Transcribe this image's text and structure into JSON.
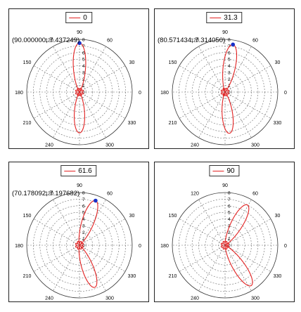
{
  "panels": [
    {
      "legend": "0",
      "cursor_label": "(90.000000, 7.437249)",
      "chart_data": {
        "type": "polar-line",
        "angle_ticks": [
          "0",
          "30",
          "60",
          "90",
          "120",
          "150",
          "180",
          "210",
          "240",
          "270",
          "300",
          "330"
        ],
        "r_ticks": [
          "0",
          "1",
          "2",
          "3",
          "4",
          "5",
          "6",
          "7",
          "8"
        ],
        "rlim": [
          0,
          8
        ],
        "series": [
          {
            "name": "0",
            "color": "#e32222",
            "peak_angle_deg": 90,
            "peak_r": 7.437249,
            "lobes": [
              {
                "angle": 90,
                "r": 7.44
              },
              {
                "angle": 270,
                "r": 6.2
              }
            ]
          }
        ],
        "marker": {
          "angle": 90,
          "r": 7.437249
        }
      }
    },
    {
      "legend": "31.3",
      "cursor_label": "(80.571434, 7.314050)",
      "chart_data": {
        "type": "polar-line",
        "angle_ticks": [
          "0",
          "30",
          "60",
          "90",
          "120",
          "150",
          "180",
          "210",
          "240",
          "270",
          "300",
          "330"
        ],
        "r_ticks": [
          "0",
          "1",
          "2",
          "3",
          "4",
          "5",
          "6",
          "7",
          "8"
        ],
        "rlim": [
          0,
          8
        ],
        "series": [
          {
            "name": "31.3",
            "color": "#e32222",
            "peak_angle_deg": 80.571434,
            "peak_r": 7.31405,
            "lobes": [
              {
                "angle": 80.6,
                "r": 7.31
              },
              {
                "angle": 276,
                "r": 6.3
              }
            ]
          }
        ],
        "marker": {
          "angle": 80.571434,
          "r": 7.31405
        }
      }
    },
    {
      "legend": "61.6",
      "cursor_label": "(70.178092, 7.197682)",
      "chart_data": {
        "type": "polar-line",
        "angle_ticks": [
          "0",
          "30",
          "60",
          "90",
          "120",
          "150",
          "180",
          "210",
          "240",
          "270",
          "300",
          "330"
        ],
        "r_ticks": [
          "0",
          "1",
          "2",
          "3",
          "4",
          "5",
          "6",
          "7",
          "8"
        ],
        "rlim": [
          0,
          8
        ],
        "series": [
          {
            "name": "61.6",
            "color": "#e32222",
            "peak_angle_deg": 70.178092,
            "peak_r": 7.197682,
            "lobes": [
              {
                "angle": 70.2,
                "r": 7.2
              },
              {
                "angle": 290,
                "r": 6.8
              }
            ]
          }
        ],
        "marker": {
          "angle": 70.178092,
          "r": 7.197682
        }
      }
    },
    {
      "legend": "90",
      "cursor_label": "",
      "chart_data": {
        "type": "polar-line",
        "angle_ticks": [
          "0",
          "30",
          "60",
          "90",
          "120",
          "150",
          "180",
          "210",
          "240",
          "270",
          "300",
          "330"
        ],
        "r_ticks": [
          "0",
          "1",
          "2",
          "3",
          "4",
          "5",
          "6",
          "7",
          "8"
        ],
        "rlim": [
          0,
          8
        ],
        "series": [
          {
            "name": "90",
            "color": "#e32222",
            "peak_angle_deg": 61,
            "peak_r": 7.0,
            "lobes": [
              {
                "angle": 61,
                "r": 7.0
              },
              {
                "angle": 303,
                "r": 7.3
              }
            ]
          }
        ],
        "marker": null
      }
    }
  ]
}
